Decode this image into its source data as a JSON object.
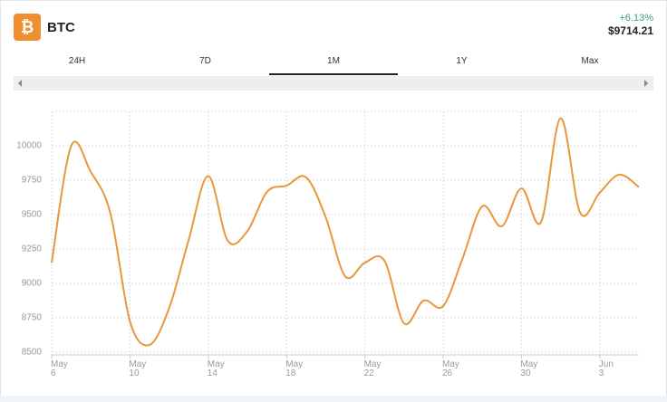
{
  "header": {
    "coin": "BTC",
    "change": "+6.13%",
    "price": "$9714.21"
  },
  "tabs": [
    "24H",
    "7D",
    "1M",
    "1Y",
    "Max"
  ],
  "chart_data": {
    "type": "line",
    "categories": [
      "May 6",
      null,
      null,
      null,
      "May 10",
      null,
      null,
      null,
      "May 14",
      null,
      null,
      null,
      "May 18",
      null,
      null,
      null,
      "May 22",
      null,
      null,
      null,
      "May 26",
      null,
      null,
      null,
      "May 30",
      null,
      null,
      null,
      "Jun 3",
      null,
      null
    ],
    "series": [
      {
        "name": "BTC",
        "color": "#e8973a",
        "values": [
          9150,
          10000,
          9810,
          9510,
          8724,
          8553,
          8820,
          9316,
          9780,
          9309,
          9380,
          9665,
          9710,
          9770,
          9480,
          9050,
          9150,
          9165,
          8710,
          8875,
          8835,
          9185,
          9560,
          9415,
          9690,
          9445,
          10200,
          9513,
          9660,
          9790,
          9700
        ]
      }
    ],
    "ylim": [
      8480,
      10250
    ],
    "yticks": [
      8500,
      8750,
      9000,
      9250,
      9500,
      9750,
      10000
    ],
    "grid": true
  }
}
